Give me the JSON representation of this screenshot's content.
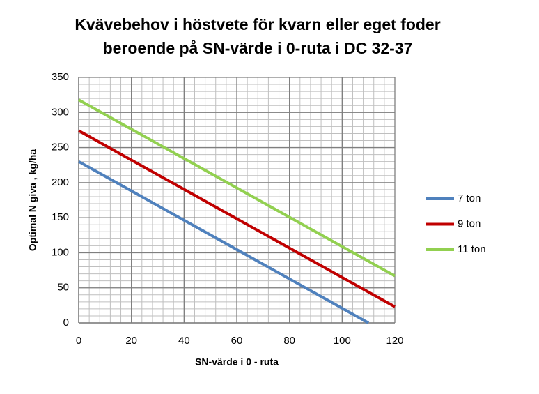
{
  "chart_data": {
    "type": "line",
    "title": [
      "Kvävebehov i höstvete för kvarn eller eget foder",
      "beroende på SN-värde i 0-ruta i DC 32-37"
    ],
    "x_label": "SN-värde i 0 - ruta",
    "y_label": "Optimal N giva , kg/ha",
    "series": [
      {
        "name": "7 ton",
        "color": "#4f81bd",
        "x": [
          0,
          110
        ],
        "values": [
          230,
          0
        ]
      },
      {
        "name": "9 ton",
        "color": "#c00000",
        "x": [
          0,
          120
        ],
        "values": [
          274,
          23
        ]
      },
      {
        "name": "11 ton",
        "color": "#92d050",
        "x": [
          0,
          120
        ],
        "values": [
          318,
          67
        ]
      }
    ],
    "xlim": [
      0,
      120
    ],
    "xticks": [
      0,
      20,
      40,
      60,
      80,
      100,
      120
    ],
    "ylim": [
      0,
      350
    ],
    "yticks": [
      0,
      50,
      100,
      150,
      200,
      250,
      300,
      350
    ],
    "grid": true,
    "minor_grid": {
      "x": 4,
      "y": 10
    },
    "legend": "right"
  }
}
